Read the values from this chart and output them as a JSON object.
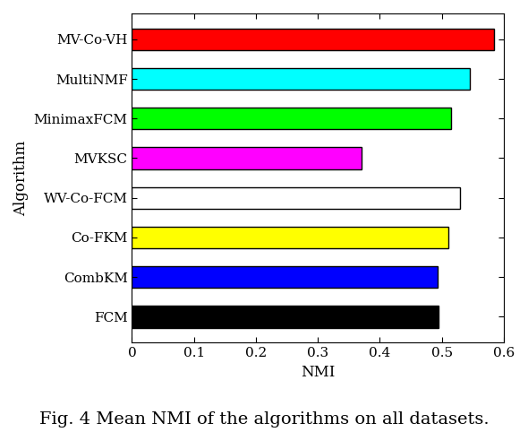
{
  "algorithms": [
    "FCM",
    "CombKM",
    "Co-FKM",
    "WV-Co-FCM",
    "MVKSC",
    "MinimaxFCM",
    "MultiNMF",
    "MV-Co-VH"
  ],
  "values": [
    0.495,
    0.493,
    0.51,
    0.53,
    0.37,
    0.515,
    0.545,
    0.585
  ],
  "colors": [
    "#000000",
    "#0000ff",
    "#ffff00",
    "#ffffff",
    "#ff00ff",
    "#00ff00",
    "#00ffff",
    "#ff0000"
  ],
  "edge_colors": [
    "#000000",
    "#000000",
    "#000000",
    "#000000",
    "#000000",
    "#000000",
    "#000000",
    "#000000"
  ],
  "xlabel": "NMI",
  "ylabel": "Algorithm",
  "xlim": [
    0,
    0.6
  ],
  "xticks": [
    0,
    0.1,
    0.2,
    0.3,
    0.4,
    0.5,
    0.6
  ],
  "caption": "Fig. 4 Mean NMI of the algorithms on all datasets.",
  "caption_fontsize": 14,
  "tick_fontsize": 11,
  "label_fontsize": 12,
  "bar_height": 0.55
}
